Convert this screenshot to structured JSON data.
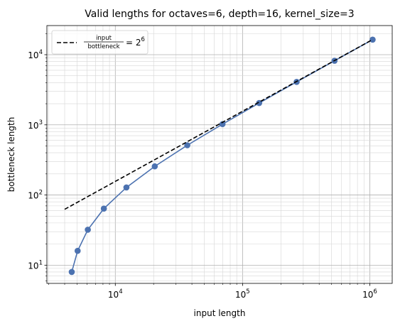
{
  "chart_data": {
    "type": "line",
    "title": "Valid lengths for octaves=6, depth=16, kernel_size=3",
    "xlabel": "input length",
    "ylabel": "bottleneck length",
    "xscale": "log",
    "yscale": "log",
    "xlim": [
      2900,
      1500000
    ],
    "ylim": [
      5.5,
      26000
    ],
    "grid": true,
    "x_ticks": [
      {
        "value": 10000,
        "base": "10",
        "exp": "4"
      },
      {
        "value": 100000,
        "base": "10",
        "exp": "5"
      },
      {
        "value": 1000000,
        "base": "10",
        "exp": "6"
      }
    ],
    "y_ticks": [
      {
        "value": 10,
        "base": "10",
        "exp": "1"
      },
      {
        "value": 100,
        "base": "10",
        "exp": "2"
      },
      {
        "value": 1000,
        "base": "10",
        "exp": "3"
      },
      {
        "value": 10000,
        "base": "10",
        "exp": "4"
      }
    ],
    "series": [
      {
        "color": "#4c72b0",
        "marker": "circle",
        "x": [
          4546,
          5058,
          6082,
          8130,
          12226,
          20418,
          36802,
          69570,
          135106,
          266178,
          528322,
          1052610
        ],
        "y": [
          8,
          16,
          32,
          64,
          128,
          256,
          512,
          1024,
          2048,
          4096,
          8192,
          16384
        ]
      },
      {
        "color": "#000000",
        "dash": "dashed",
        "x": [
          4000,
          1052610
        ],
        "y": [
          62.5,
          16447
        ]
      }
    ],
    "legend": {
      "position": "top-left",
      "entries": [
        {
          "numerator": "input",
          "denominator": "bottleneck",
          "equals": "= 2",
          "exp": "6"
        }
      ]
    }
  }
}
